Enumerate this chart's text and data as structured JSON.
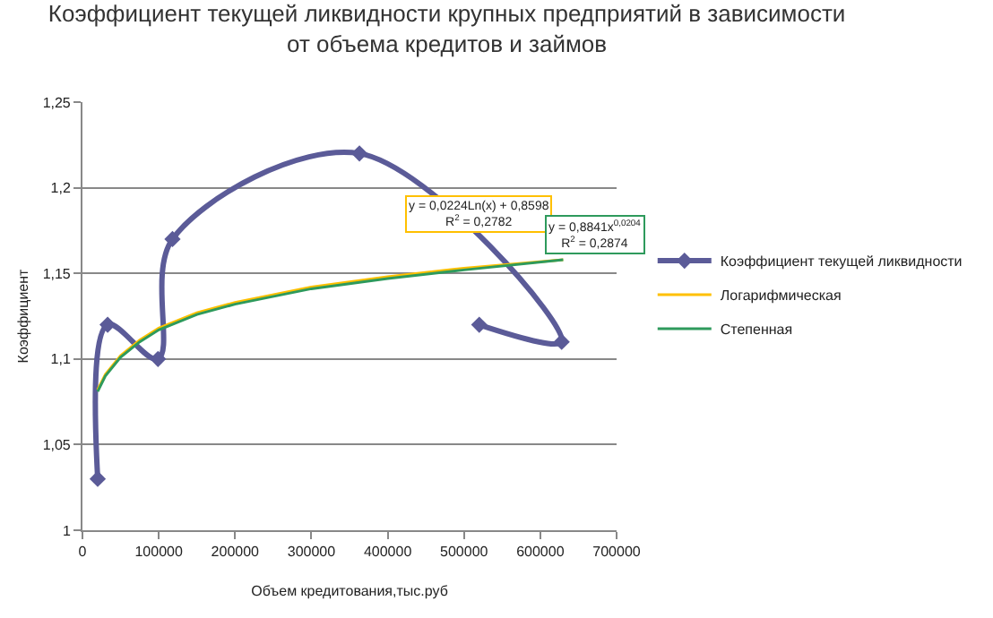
{
  "chart_data": {
    "type": "line",
    "title": "Коэффициент текущей ликвидности крупных предприятий в зависимости\nот объема кредитов и займов",
    "xlabel": "Объем кредитования,тыс.руб",
    "ylabel": "Коэффициент",
    "xlim": [
      0,
      700000
    ],
    "xticks": [
      0,
      100000,
      200000,
      300000,
      400000,
      500000,
      600000,
      700000
    ],
    "ylim": [
      1,
      1.25
    ],
    "yticks": [
      {
        "value": 1,
        "label": "1"
      },
      {
        "value": 1.05,
        "label": "1,05"
      },
      {
        "value": 1.1,
        "label": "1,1"
      },
      {
        "value": 1.15,
        "label": "1,15"
      },
      {
        "value": 1.2,
        "label": "1,2"
      },
      {
        "value": 1.25,
        "label": "1,25"
      }
    ],
    "grid": "y",
    "legend": "right",
    "series": [
      {
        "name": "Коэффициент текущей ликвидности",
        "color": "#5b5b98",
        "marker": "diamond",
        "x": [
          20000,
          33000,
          99000,
          118000,
          363000,
          628000,
          520000
        ],
        "values": [
          1.03,
          1.12,
          1.1,
          1.17,
          1.22,
          1.11,
          1.12
        ]
      },
      {
        "name": "Логарифмическая",
        "color": "#ffc000",
        "marker": "none",
        "x": [
          20000,
          30000,
          50000,
          75000,
          100000,
          150000,
          200000,
          300000,
          400000,
          500000,
          630000
        ],
        "values": [
          1.082,
          1.091,
          1.102,
          1.111,
          1.118,
          1.127,
          1.133,
          1.142,
          1.148,
          1.153,
          1.158
        ]
      },
      {
        "name": "Степенная",
        "color": "#2e9a5c",
        "marker": "none",
        "x": [
          20000,
          30000,
          50000,
          75000,
          100000,
          150000,
          200000,
          300000,
          400000,
          500000,
          630000
        ],
        "values": [
          1.081,
          1.09,
          1.101,
          1.11,
          1.117,
          1.126,
          1.132,
          1.141,
          1.147,
          1.152,
          1.158
        ]
      }
    ],
    "annotations": [
      "y = 0,0224Ln(x) + 0,8598\nR$^{2}$ = 0,2782",
      "y = 0,8841x$^{0,0204}$\nR$^{2}$ = 0,2874"
    ]
  }
}
